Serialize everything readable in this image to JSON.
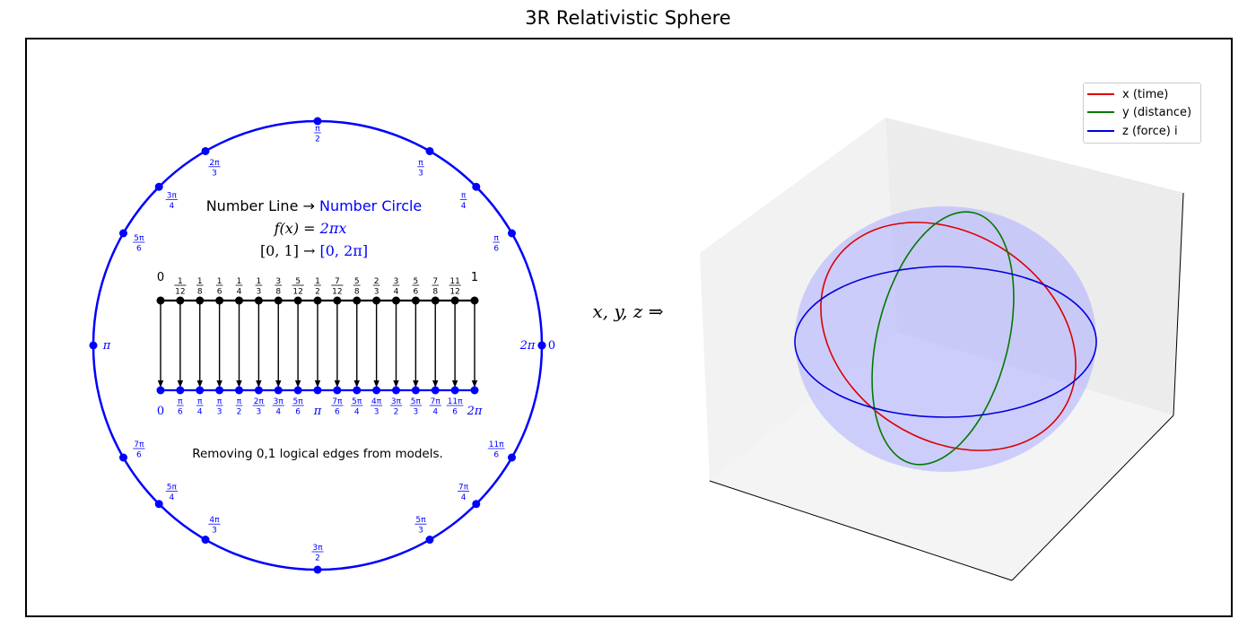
{
  "title": "3R Relativistic Sphere",
  "circle_panel": {
    "heading_part1": "Number Line → ",
    "heading_part2": "Number Circle",
    "formula_f": "f(x) = ",
    "formula_rhs": "2πx",
    "mapping_lhs": "[0, 1] → ",
    "mapping_rhs": "[0, 2π]",
    "caption": "Removing 0,1 logical edges from models.",
    "circle_color": "#0000ff",
    "line_color": "#000000",
    "circle_points": [
      {
        "angle": 0,
        "label": "0"
      },
      {
        "angle": 30,
        "label": "π/6"
      },
      {
        "angle": 45,
        "label": "π/4"
      },
      {
        "angle": 60,
        "label": "π/3"
      },
      {
        "angle": 90,
        "label": "π/2"
      },
      {
        "angle": 120,
        "label": "2π/3"
      },
      {
        "angle": 135,
        "label": "3π/4"
      },
      {
        "angle": 150,
        "label": "5π/6"
      },
      {
        "angle": 180,
        "label": "π"
      },
      {
        "angle": 210,
        "label": "7π/6"
      },
      {
        "angle": 225,
        "label": "5π/4"
      },
      {
        "angle": 240,
        "label": "4π/3"
      },
      {
        "angle": 270,
        "label": "3π/2"
      },
      {
        "angle": 300,
        "label": "5π/3"
      },
      {
        "angle": 315,
        "label": "7π/4"
      },
      {
        "angle": 330,
        "label": "11π/6"
      },
      {
        "angle": 360,
        "label": "2π"
      }
    ],
    "number_line_labels": [
      "0",
      "1/12",
      "1/8",
      "1/6",
      "1/4",
      "1/3",
      "3/8",
      "5/12",
      "1/2",
      "7/12",
      "5/8",
      "2/3",
      "3/4",
      "5/6",
      "7/8",
      "11/12",
      "1"
    ],
    "mapped_labels": [
      "0",
      "π/6",
      "π/4",
      "π/3",
      "π/2",
      "2π/3",
      "3π/4",
      "5π/6",
      "π",
      "7π/6",
      "5π/4",
      "4π/3",
      "3π/2",
      "5π/3",
      "7π/4",
      "11π/6",
      "2π"
    ]
  },
  "arrow_label": "x, y, z ⇒",
  "sphere_panel": {
    "sphere_color": "#b3b3ff",
    "legend": [
      {
        "label": "x (time)",
        "color": "#dd0000"
      },
      {
        "label": "y (distance)",
        "color": "#007a00"
      },
      {
        "label": "z (force) i",
        "color": "#0000dd"
      }
    ]
  }
}
